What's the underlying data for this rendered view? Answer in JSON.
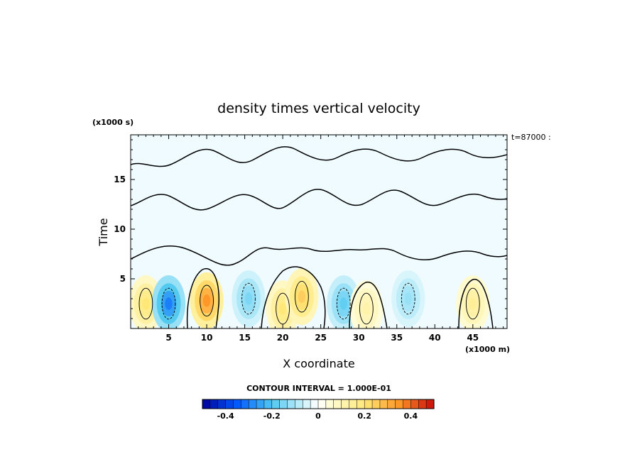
{
  "chart_data": {
    "type": "heatmap",
    "title": "density times vertical velocity",
    "xlabel": "X coordinate",
    "ylabel": "Time",
    "x_unit": "(x1000 m)",
    "y_unit": "(x1000 s)",
    "xlim": [
      0,
      49.5
    ],
    "ylim": [
      0,
      19.5
    ],
    "x_ticks": [
      5,
      10,
      15,
      20,
      25,
      30,
      35,
      40,
      45
    ],
    "y_ticks": [
      5,
      10,
      15
    ],
    "time_stamp": "t=87000 :",
    "contour_interval": "CONTOUR INTERVAL = 1.000E-01",
    "colorbar": {
      "range": [
        -0.5,
        0.5
      ],
      "ticks": [
        -0.4,
        -0.2,
        0,
        0.2,
        0.4
      ],
      "tick_labels": [
        "-0.4",
        "-0.2",
        "0",
        "0.2",
        "0.4"
      ],
      "segments": 30
    },
    "features": [
      {
        "x": 2.0,
        "y": 2.5,
        "value": 0.2
      },
      {
        "x": 5.0,
        "y": 2.5,
        "value": -0.3
      },
      {
        "x": 10.0,
        "y": 2.8,
        "value": 0.35
      },
      {
        "x": 15.5,
        "y": 3.0,
        "value": -0.15
      },
      {
        "x": 20.0,
        "y": 2.0,
        "value": 0.2
      },
      {
        "x": 22.5,
        "y": 3.2,
        "value": 0.25
      },
      {
        "x": 28.0,
        "y": 2.5,
        "value": -0.18
      },
      {
        "x": 31.0,
        "y": 2.0,
        "value": 0.12
      },
      {
        "x": 36.5,
        "y": 3.0,
        "value": -0.12
      },
      {
        "x": 45.0,
        "y": 2.5,
        "value": 0.15
      }
    ]
  }
}
